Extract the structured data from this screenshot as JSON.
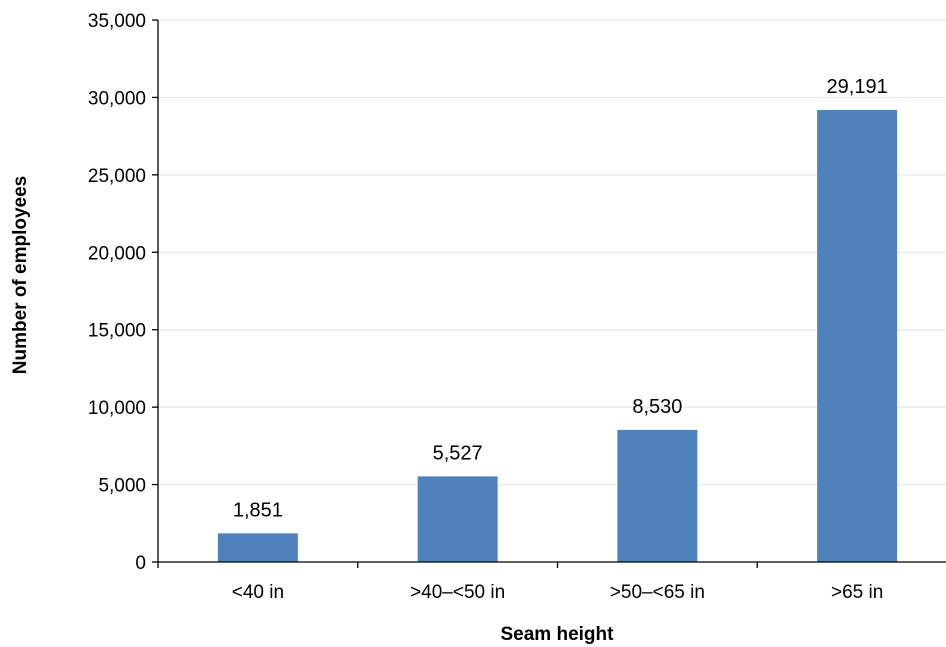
{
  "chart_data": {
    "type": "bar",
    "title": "",
    "xlabel": "Seam height",
    "ylabel": "Number of employees",
    "categories": [
      "<40 in",
      ">40–<50 in",
      ">50–<65 in",
      ">65 in"
    ],
    "values": [
      1851,
      5527,
      8530,
      29191
    ],
    "value_labels": [
      "1,851",
      "5,527",
      "8,530",
      "29,191"
    ],
    "ylim": [
      0,
      35000
    ],
    "yticks": [
      0,
      5000,
      10000,
      15000,
      20000,
      25000,
      30000,
      35000
    ],
    "ytick_labels": [
      "0",
      "5,000",
      "10,000",
      "15,000",
      "20,000",
      "25,000",
      "30,000",
      "35,000"
    ],
    "grid": true,
    "legend": "none",
    "colors": {
      "bar": "#4f81bd",
      "grid": "#e8e8e8",
      "axis": "#000000"
    }
  }
}
